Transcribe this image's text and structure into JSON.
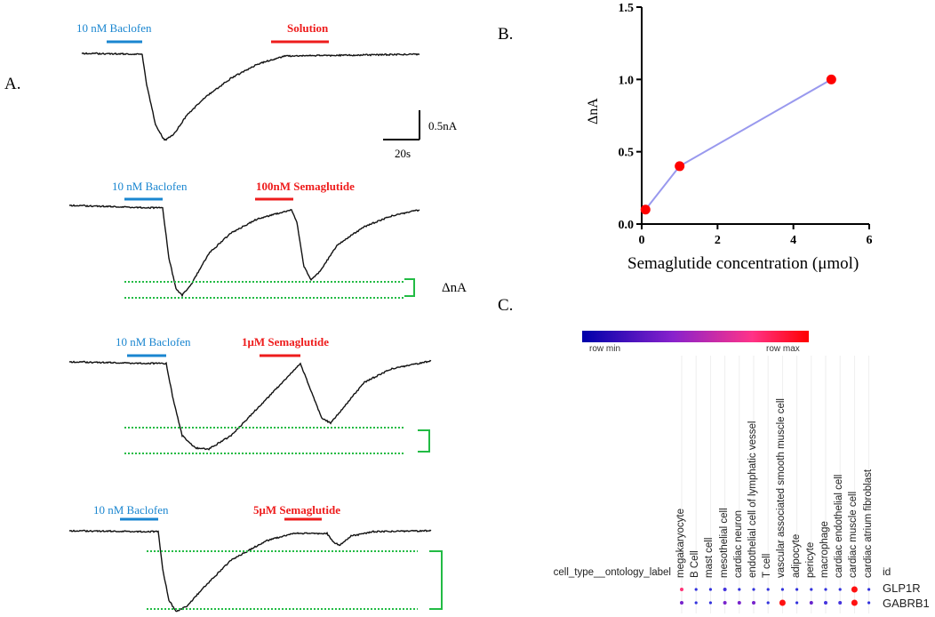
{
  "panels": {
    "a": "A.",
    "b": "B.",
    "c": "C."
  },
  "traces": [
    {
      "baclofen": "10 nM Baclofen",
      "treatment": "Solution"
    },
    {
      "baclofen": "10 nM Baclofen",
      "treatment": "100nM Semaglutide"
    },
    {
      "baclofen": "10 nM Baclofen",
      "treatment": "1μM Semaglutide"
    },
    {
      "baclofen": "10 nM Baclofen",
      "treatment": "5μM Semaglutide"
    }
  ],
  "scale_bar": {
    "current": "0.5nA",
    "time": "20s"
  },
  "delta_label": "ΔnA",
  "colors": {
    "baclofen": "#1a86d0",
    "treatment": "#ee1c1c",
    "dotted": "#22bb44",
    "line": "#9999ee",
    "point": "#ff0000"
  },
  "chart_data": {
    "type": "line",
    "title": "",
    "xlabel": "Semaglutide concentration (μmol)",
    "ylabel": "ΔnA",
    "xlim": [
      0,
      6
    ],
    "ylim": [
      0,
      1.5
    ],
    "xticks": [
      "0",
      "2",
      "4",
      "6"
    ],
    "yticks": [
      "0.0",
      "0.5",
      "1.0",
      "1.5"
    ],
    "x": [
      0.1,
      1,
      5
    ],
    "y": [
      0.1,
      0.4,
      1.0
    ],
    "grid": false
  },
  "heatmap": {
    "colorbar_min": "row min",
    "colorbar_max": "row max",
    "row_header": "cell_type__ontology_label",
    "id_header": "id",
    "columns": [
      "megakaryocyte",
      "B Cell",
      "mast cell",
      "mesothelial cell",
      "cardiac neuron",
      "endothelial cell of lymphatic vessel",
      "T cell",
      "vascular associated smooth muscle cell",
      "adipocyte",
      "pericyte",
      "macrophage",
      "cardiac endothelial cell",
      "cardiac muscle cell",
      "cardiac atrium fibroblast"
    ],
    "rows": [
      {
        "id": "GLP1R",
        "colors": [
          "#ff3377",
          "#3333dd",
          "#3333dd",
          "#4433dd",
          "#3333dd",
          "#3333dd",
          "#3333dd",
          "#3333dd",
          "#3333dd",
          "#3333dd",
          "#3333dd",
          "#3333dd",
          "#ff1111",
          "#3333dd"
        ]
      },
      {
        "id": "GABRB1",
        "colors": [
          "#7722cc",
          "#3333dd",
          "#3333dd",
          "#7722cc",
          "#7722cc",
          "#7722cc",
          "#3333dd",
          "#ff1111",
          "#3333dd",
          "#6622cc",
          "#4433dd",
          "#4433dd",
          "#ff1111",
          "#3333dd"
        ]
      }
    ]
  }
}
